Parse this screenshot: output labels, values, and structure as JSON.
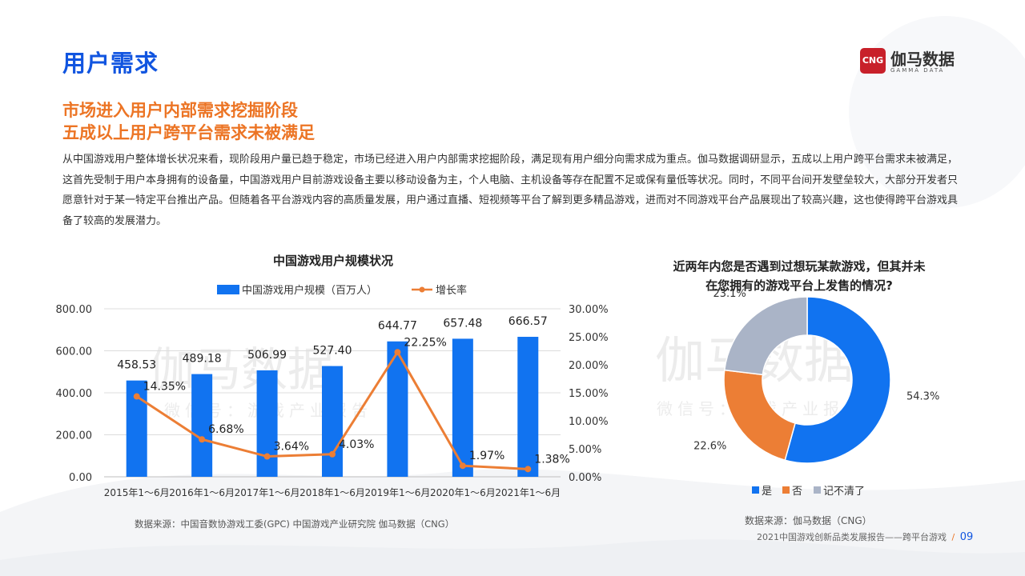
{
  "header": {
    "title": "用户需求",
    "logo_badge": "CNG",
    "logo_cn": "伽马数据",
    "logo_en": "GAMMA DATA"
  },
  "subtitle": {
    "line1": "市场进入用户内部需求挖掘阶段",
    "line2": "五成以上用户跨平台需求未被满足"
  },
  "body_text": "从中国游戏用户整体增长状况来看，现阶段用户量已趋于稳定，市场已经进入用户内部需求挖掘阶段，满足现有用户细分向需求成为重点。伽马数据调研显示，五成以上用户跨平台需求未被满足，这首先受制于用户本身拥有的设备量，中国游戏用户目前游戏设备主要以移动设备为主，个人电脑、主机设备等存在配置不足或保有量低等状况。同时，不同平台间开发壁垒较大，大部分开发者只愿意针对于某一特定平台推出产品。但随着各平台游戏内容的高质量发展，用户通过直播、短视频等平台了解到更多精品游戏，进而对不同游戏平台产品展现出了较高兴趣，这也使得跨平台游戏具备了较高的发展潜力。",
  "watermark": {
    "main": "伽马数据",
    "sub": "微信号：游戏产业报告"
  },
  "colors": {
    "title_blue": "#1155e0",
    "accent_orange": "#ec7424",
    "bar_blue": "#1173f0",
    "line_orange": "#ec7e35",
    "pie_yes": "#1173f0",
    "pie_no": "#ec7e35",
    "pie_unsure": "#aab4c7"
  },
  "chart_data": [
    {
      "type": "bar",
      "title": "中国游戏用户规模状况",
      "categories": [
        "2015年1～6月",
        "2016年1～6月",
        "2017年1～6月",
        "2018年1～6月",
        "2019年1～6月",
        "2020年1～6月",
        "2021年1～6月"
      ],
      "series": [
        {
          "name": "中国游戏用户规模（百万人）",
          "type": "bar",
          "axis": "left",
          "values": [
            458.53,
            489.18,
            506.99,
            527.4,
            644.77,
            657.48,
            666.57
          ]
        },
        {
          "name": "增长率",
          "type": "line",
          "axis": "right",
          "values": [
            14.35,
            6.68,
            3.64,
            4.03,
            22.25,
            1.97,
            1.38
          ]
        }
      ],
      "bar_labels": [
        "458.53",
        "489.18",
        "506.99",
        "527.40",
        "644.77",
        "657.48",
        "666.57"
      ],
      "line_labels": [
        "14.35%",
        "6.68%",
        "3.64%",
        "4.03%",
        "22.25%",
        "1.97%",
        "1.38%"
      ],
      "ylim_left": [
        0,
        800
      ],
      "ylim_right": [
        0,
        30
      ],
      "left_ticks": [
        "0.00",
        "200.00",
        "400.00",
        "600.00",
        "800.00"
      ],
      "right_ticks": [
        "0.00%",
        "5.00%",
        "10.00%",
        "15.00%",
        "20.00%",
        "25.00%",
        "30.00%"
      ],
      "grid": true,
      "legend_position": "top"
    },
    {
      "type": "pie",
      "title_lines": [
        "近两年内您是否遇到过想玩某款游戏，但其并未",
        "在您拥有的游戏平台上发售的情况?"
      ],
      "labels": [
        "是",
        "否",
        "记不清了"
      ],
      "values": [
        54.3,
        22.6,
        23.1
      ],
      "value_labels": [
        "54.3%",
        "22.6%",
        "23.1%"
      ],
      "donut": true,
      "legend_position": "bottom"
    }
  ],
  "sources": {
    "left": "数据来源：中国音数协游戏工委(GPC) 中国游戏产业研究院  伽马数据（CNG）",
    "right": "数据来源：伽马数据（CNG）"
  },
  "footer": {
    "report": "2021中国游戏创新品类发展报告——跨平台游戏",
    "separator": "/",
    "page": "09"
  }
}
